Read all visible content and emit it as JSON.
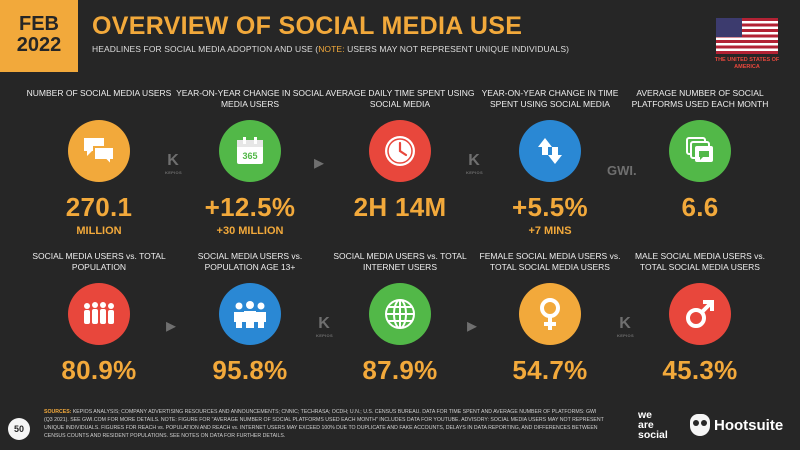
{
  "header": {
    "date_line1": "FEB",
    "date_line2": "2022",
    "title": "OVERVIEW OF SOCIAL MEDIA USE",
    "subtitle_main": "HEADLINES FOR SOCIAL MEDIA ADOPTION AND USE (",
    "subtitle_note": "NOTE:",
    "subtitle_rest": " USERS MAY NOT REPRESENT UNIQUE INDIVIDUALS)",
    "country": "THE UNITED STATES OF AMERICA"
  },
  "top_row": [
    {
      "label": "NUMBER OF SOCIAL MEDIA USERS",
      "value": "270.1",
      "sub": "MILLION",
      "color": "#f2a93b",
      "icon": "chat-bubbles-icon"
    },
    {
      "label": "YEAR-ON-YEAR CHANGE IN SOCIAL MEDIA USERS",
      "value": "+12.5%",
      "sub": "+30 MILLION",
      "color": "#52b848",
      "icon": "calendar-365-icon"
    },
    {
      "label": "AVERAGE DAILY TIME SPENT USING SOCIAL MEDIA",
      "value": "2H 14M",
      "sub": "",
      "color": "#e8473c",
      "icon": "clock-icon"
    },
    {
      "label": "YEAR-ON-YEAR CHANGE IN TIME SPENT USING SOCIAL MEDIA",
      "value": "+5.5%",
      "sub": "+7 MINS",
      "color": "#2a88d4",
      "icon": "up-down-arrows-icon"
    },
    {
      "label": "AVERAGE NUMBER OF SOCIAL PLATFORMS USED EACH MONTH",
      "value": "6.6",
      "sub": "",
      "color": "#52b848",
      "icon": "stacked-windows-icon"
    }
  ],
  "bottom_row": [
    {
      "label": "SOCIAL MEDIA USERS vs. TOTAL POPULATION",
      "value": "80.9%",
      "color": "#e8473c",
      "icon": "crowd-icon"
    },
    {
      "label": "SOCIAL MEDIA USERS vs. POPULATION AGE 13+",
      "value": "95.8%",
      "color": "#2a88d4",
      "icon": "group-icon"
    },
    {
      "label": "SOCIAL MEDIA USERS vs. TOTAL INTERNET USERS",
      "value": "87.9%",
      "color": "#52b848",
      "icon": "globe-icon"
    },
    {
      "label": "FEMALE SOCIAL MEDIA USERS vs. TOTAL SOCIAL MEDIA USERS",
      "value": "54.7%",
      "color": "#f2a93b",
      "icon": "female-symbol-icon"
    },
    {
      "label": "MALE SOCIAL MEDIA USERS vs. TOTAL SOCIAL MEDIA USERS",
      "value": "45.3%",
      "color": "#e8473c",
      "icon": "male-symbol-icon"
    }
  ],
  "watermarks": {
    "kepios": "KEPIOS",
    "gwi": "GWI."
  },
  "footer": {
    "sources_label": "SOURCES:",
    "sources_text": " KEPIOS ANALYSIS; COMPANY ADVERTISING RESOURCES AND ANNOUNCEMENTS; CNNIC; TECHRASA; OCDH; U.N.; U.S. CENSUS BUREAU. DATA FOR TIME SPENT AND AVERAGE NUMBER OF PLATFORMS: GWI (Q3 2021). SEE GWI.COM FOR MORE DETAILS. NOTE: FIGURE FOR \"AVERAGE NUMBER OF SOCIAL PLATFORMS USED EACH MONTH\" INCLUDES DATA FOR YOUTUBE. ADVISORY: SOCIAL MEDIA USERS MAY NOT REPRESENT UNIQUE INDIVIDUALS. FIGURES FOR REACH vs. POPULATION AND REACH vs. INTERNET USERS MAY EXCEED 100% DUE TO DUPLICATE AND FAKE ACCOUNTS, DELAYS IN DATA REPORTING, AND DIFFERENCES BETWEEN CENSUS COUNTS AND RESIDENT POPULATIONS. SEE NOTES ON DATA FOR FURTHER DETAILS.",
    "page_number": "50",
    "brand1_line1": "we",
    "brand1_line2": "are",
    "brand1_line3": "social",
    "brand2": "Hootsuite"
  }
}
